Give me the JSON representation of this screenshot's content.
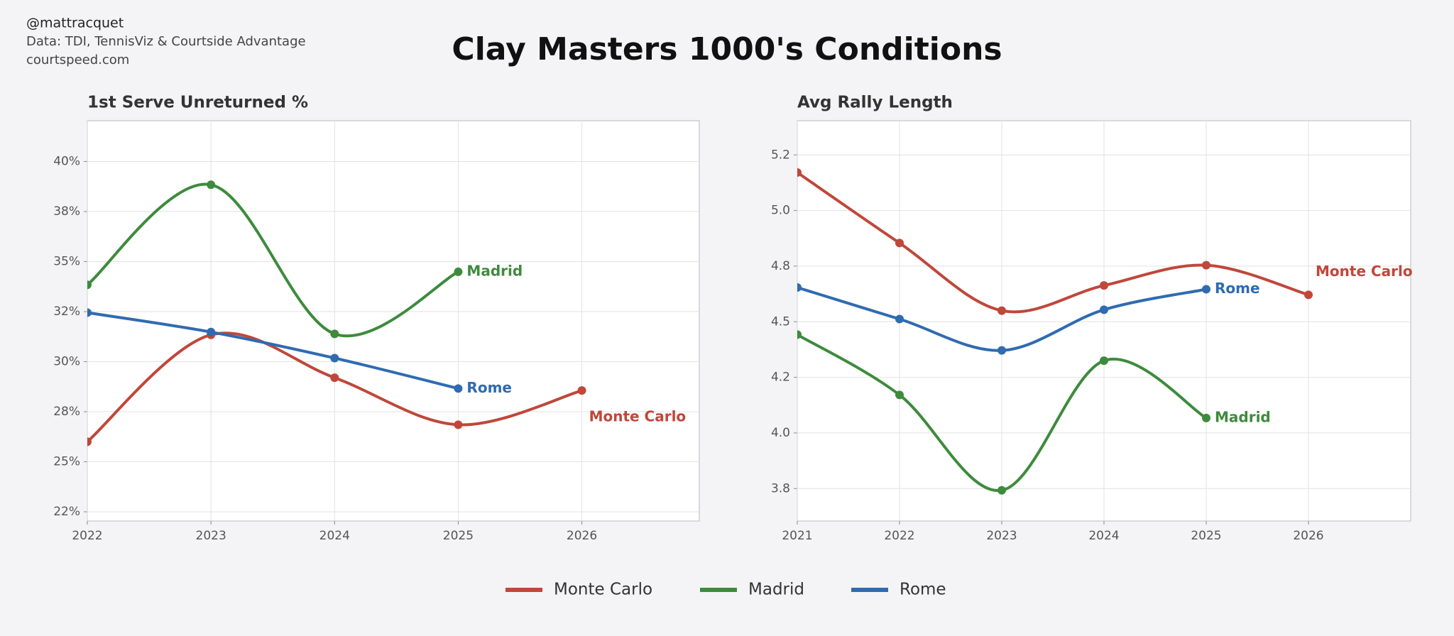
{
  "title": "Clay Masters 1000's Conditions",
  "notes": [
    "@mattracquet",
    "Data: TDI, TennisViz & Courtside Advantage",
    "courtspeed.com"
  ],
  "chart_data": [
    {
      "type": "line",
      "title": "1st Serve Unreturned %",
      "x": [
        2022,
        2023,
        2024,
        2025,
        2026
      ],
      "xlim": [
        2022,
        2026.95
      ],
      "xticks": [
        2022,
        2023,
        2024,
        2025,
        2026
      ],
      "ylim": [
        22.04,
        42.04
      ],
      "yticks": [
        {
          "value": 22.5,
          "label": "22%"
        },
        {
          "value": 25,
          "label": "25%"
        },
        {
          "value": 27.5,
          "label": "28%"
        },
        {
          "value": 30,
          "label": "30%"
        },
        {
          "value": 32.5,
          "label": "32%"
        },
        {
          "value": 35,
          "label": "35%"
        },
        {
          "value": 37.5,
          "label": "38%"
        },
        {
          "value": 40,
          "label": "40%"
        }
      ],
      "grid": true,
      "series": [
        {
          "name": "Monte Carlo",
          "color": "#c0473a",
          "values": [
            26.0,
            31.34,
            29.2,
            26.85,
            28.56
          ]
        },
        {
          "name": "Madrid",
          "color": "#3d8b3d",
          "values": [
            33.84,
            38.84,
            31.39,
            34.49,
            null
          ]
        },
        {
          "name": "Rome",
          "color": "#2f6bb0",
          "values": [
            32.45,
            31.48,
            30.18,
            28.66,
            null
          ]
        }
      ]
    },
    {
      "type": "line",
      "title": "Avg Rally Length",
      "x": [
        2021,
        2022,
        2023,
        2024,
        2025,
        2026
      ],
      "xlim": [
        2021,
        2027
      ],
      "xticks": [
        2021,
        2022,
        2023,
        2024,
        2025,
        2026
      ],
      "ylim": [
        3.604,
        5.404
      ],
      "yticks": [
        {
          "value": 3.75,
          "label": "3.8"
        },
        {
          "value": 4.0,
          "label": "4.0"
        },
        {
          "value": 4.25,
          "label": "4.2"
        },
        {
          "value": 4.5,
          "label": "4.5"
        },
        {
          "value": 4.75,
          "label": "4.8"
        },
        {
          "value": 5.0,
          "label": "5.0"
        },
        {
          "value": 5.25,
          "label": "5.2"
        }
      ],
      "grid": true,
      "series": [
        {
          "name": "Monte Carlo",
          "color": "#c0473a",
          "values": [
            5.171,
            4.854,
            4.55,
            4.663,
            4.754,
            4.621
          ]
        },
        {
          "name": "Madrid",
          "color": "#3d8b3d",
          "values": [
            4.442,
            4.171,
            3.742,
            4.325,
            4.067,
            null
          ]
        },
        {
          "name": "Rome",
          "color": "#2f6bb0",
          "values": [
            4.654,
            4.512,
            4.371,
            4.554,
            4.646,
            null
          ]
        }
      ]
    }
  ]
}
